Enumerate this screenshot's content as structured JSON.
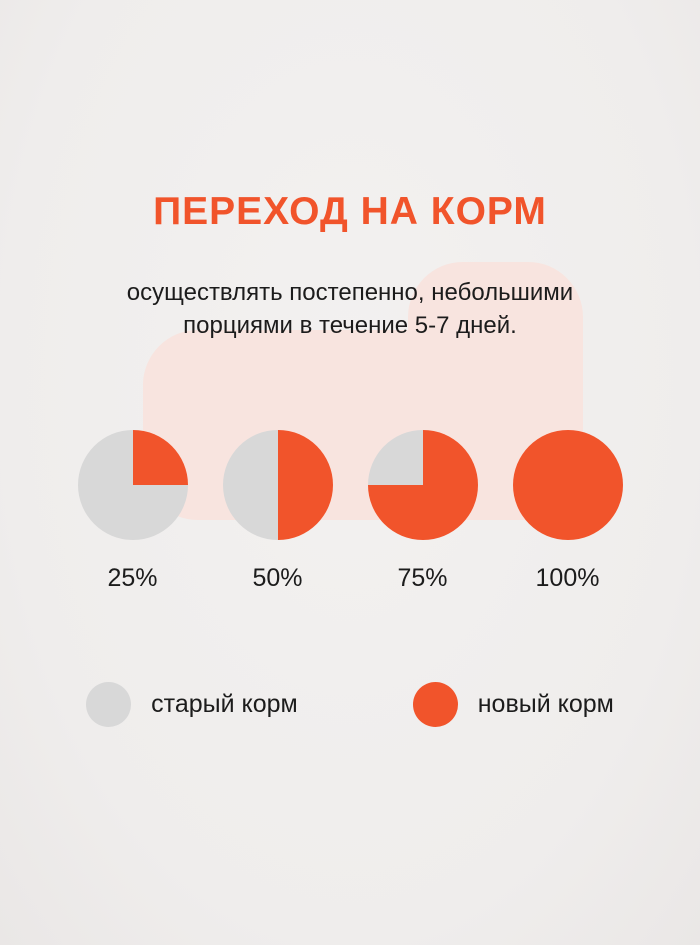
{
  "page": {
    "background_color": "#f0eeee",
    "blob_color": "#f8e4df"
  },
  "colors": {
    "accent_orange": "#f1542b",
    "old_food_gray": "#d8d8d8",
    "text_dark": "#1c1c1c"
  },
  "title": "ПЕРЕХОД НА КОРМ",
  "subtitle": "осуществлять постепенно, небольшими порциями в течение 5-7 дней.",
  "chart_data": {
    "type": "pie",
    "title": "ПЕРЕХОД НА КОРМ",
    "subtitle": "осуществлять постепенно, небольшими порциями в течение 5-7 дней.",
    "pies": [
      {
        "label": "25%",
        "new_food_pct": 25,
        "old_food_pct": 75
      },
      {
        "label": "50%",
        "new_food_pct": 50,
        "old_food_pct": 50
      },
      {
        "label": "75%",
        "new_food_pct": 75,
        "old_food_pct": 25
      },
      {
        "label": "100%",
        "new_food_pct": 100,
        "old_food_pct": 0
      }
    ],
    "legend": [
      {
        "name": "старый корм",
        "color": "#d8d8d8"
      },
      {
        "name": "новый корм",
        "color": "#f1542b"
      }
    ],
    "legend_position": "bottom",
    "grid": false
  }
}
